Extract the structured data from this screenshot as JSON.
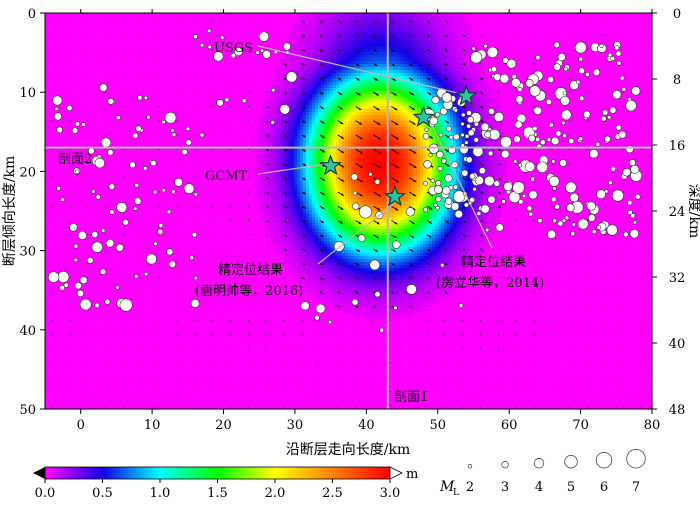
{
  "axes": {
    "xlabel": "沿断层走向长度/km",
    "ylabel_left": "断层倾向长度/km",
    "ylabel_right": "深度/km",
    "x_ticks": [
      "0",
      "10",
      "20",
      "30",
      "40",
      "50",
      "60",
      "70",
      "80"
    ],
    "x_tick_values": [
      0,
      10,
      20,
      30,
      40,
      50,
      60,
      70,
      80
    ],
    "y_left_ticks": [
      "0",
      "10",
      "20",
      "30",
      "40",
      "50"
    ],
    "y_left_tick_values": [
      0,
      10,
      20,
      30,
      40,
      50
    ],
    "y_right_ticks": [
      "0",
      "8",
      "16",
      "24",
      "32",
      "40",
      "48"
    ],
    "y_right_tick_values": [
      0,
      8,
      16,
      24,
      32,
      40,
      48
    ],
    "xlim": [
      -5,
      80
    ],
    "ylim": [
      0,
      50
    ],
    "depth_lim": [
      0,
      48
    ]
  },
  "annotations": {
    "usgs": "USGS",
    "gcmt": "GCMT",
    "profile1": "剖面1",
    "profile2": "剖面2",
    "tang_line1": "精定位结果",
    "tang_line2": "(唐明帅等，2016)",
    "fang_line1": "精定位结果",
    "fang_line2": "(房立华等，2014)"
  },
  "colorbar": {
    "unit": "m",
    "ticks": [
      "0.0",
      "0.5",
      "1.0",
      "1.5",
      "2.0",
      "2.5",
      "3.0"
    ],
    "tick_values": [
      0,
      0.5,
      1.0,
      1.5,
      2.0,
      2.5,
      3.0
    ],
    "range": [
      0,
      3.0
    ],
    "colors": [
      "#ff00ff",
      "#1400e6",
      "#00ffff",
      "#00ff00",
      "#ffff00",
      "#ff8000",
      "#ff0000"
    ]
  },
  "magnitude_legend": {
    "label": "M",
    "subscript": "L",
    "labels": [
      "2",
      "3",
      "4",
      "5",
      "6",
      "7"
    ],
    "values": [
      2,
      3,
      4,
      5,
      6,
      7
    ]
  },
  "profile_lines": {
    "profile1_x_km": 43,
    "profile2_y_km": 17
  },
  "stars": [
    {
      "name": "USGS",
      "x": 54,
      "y": 10.5
    },
    {
      "name": "fang-2014",
      "x": 48,
      "y": 13.2
    },
    {
      "name": "GCMT",
      "x": 35,
      "y": 19.3
    },
    {
      "name": "tang-2016",
      "x": 44,
      "y": 23.2
    }
  ],
  "slip_model": {
    "peak_slip_m": 3.0,
    "peak_x_km": 42,
    "peak_y_km": 19
  }
}
